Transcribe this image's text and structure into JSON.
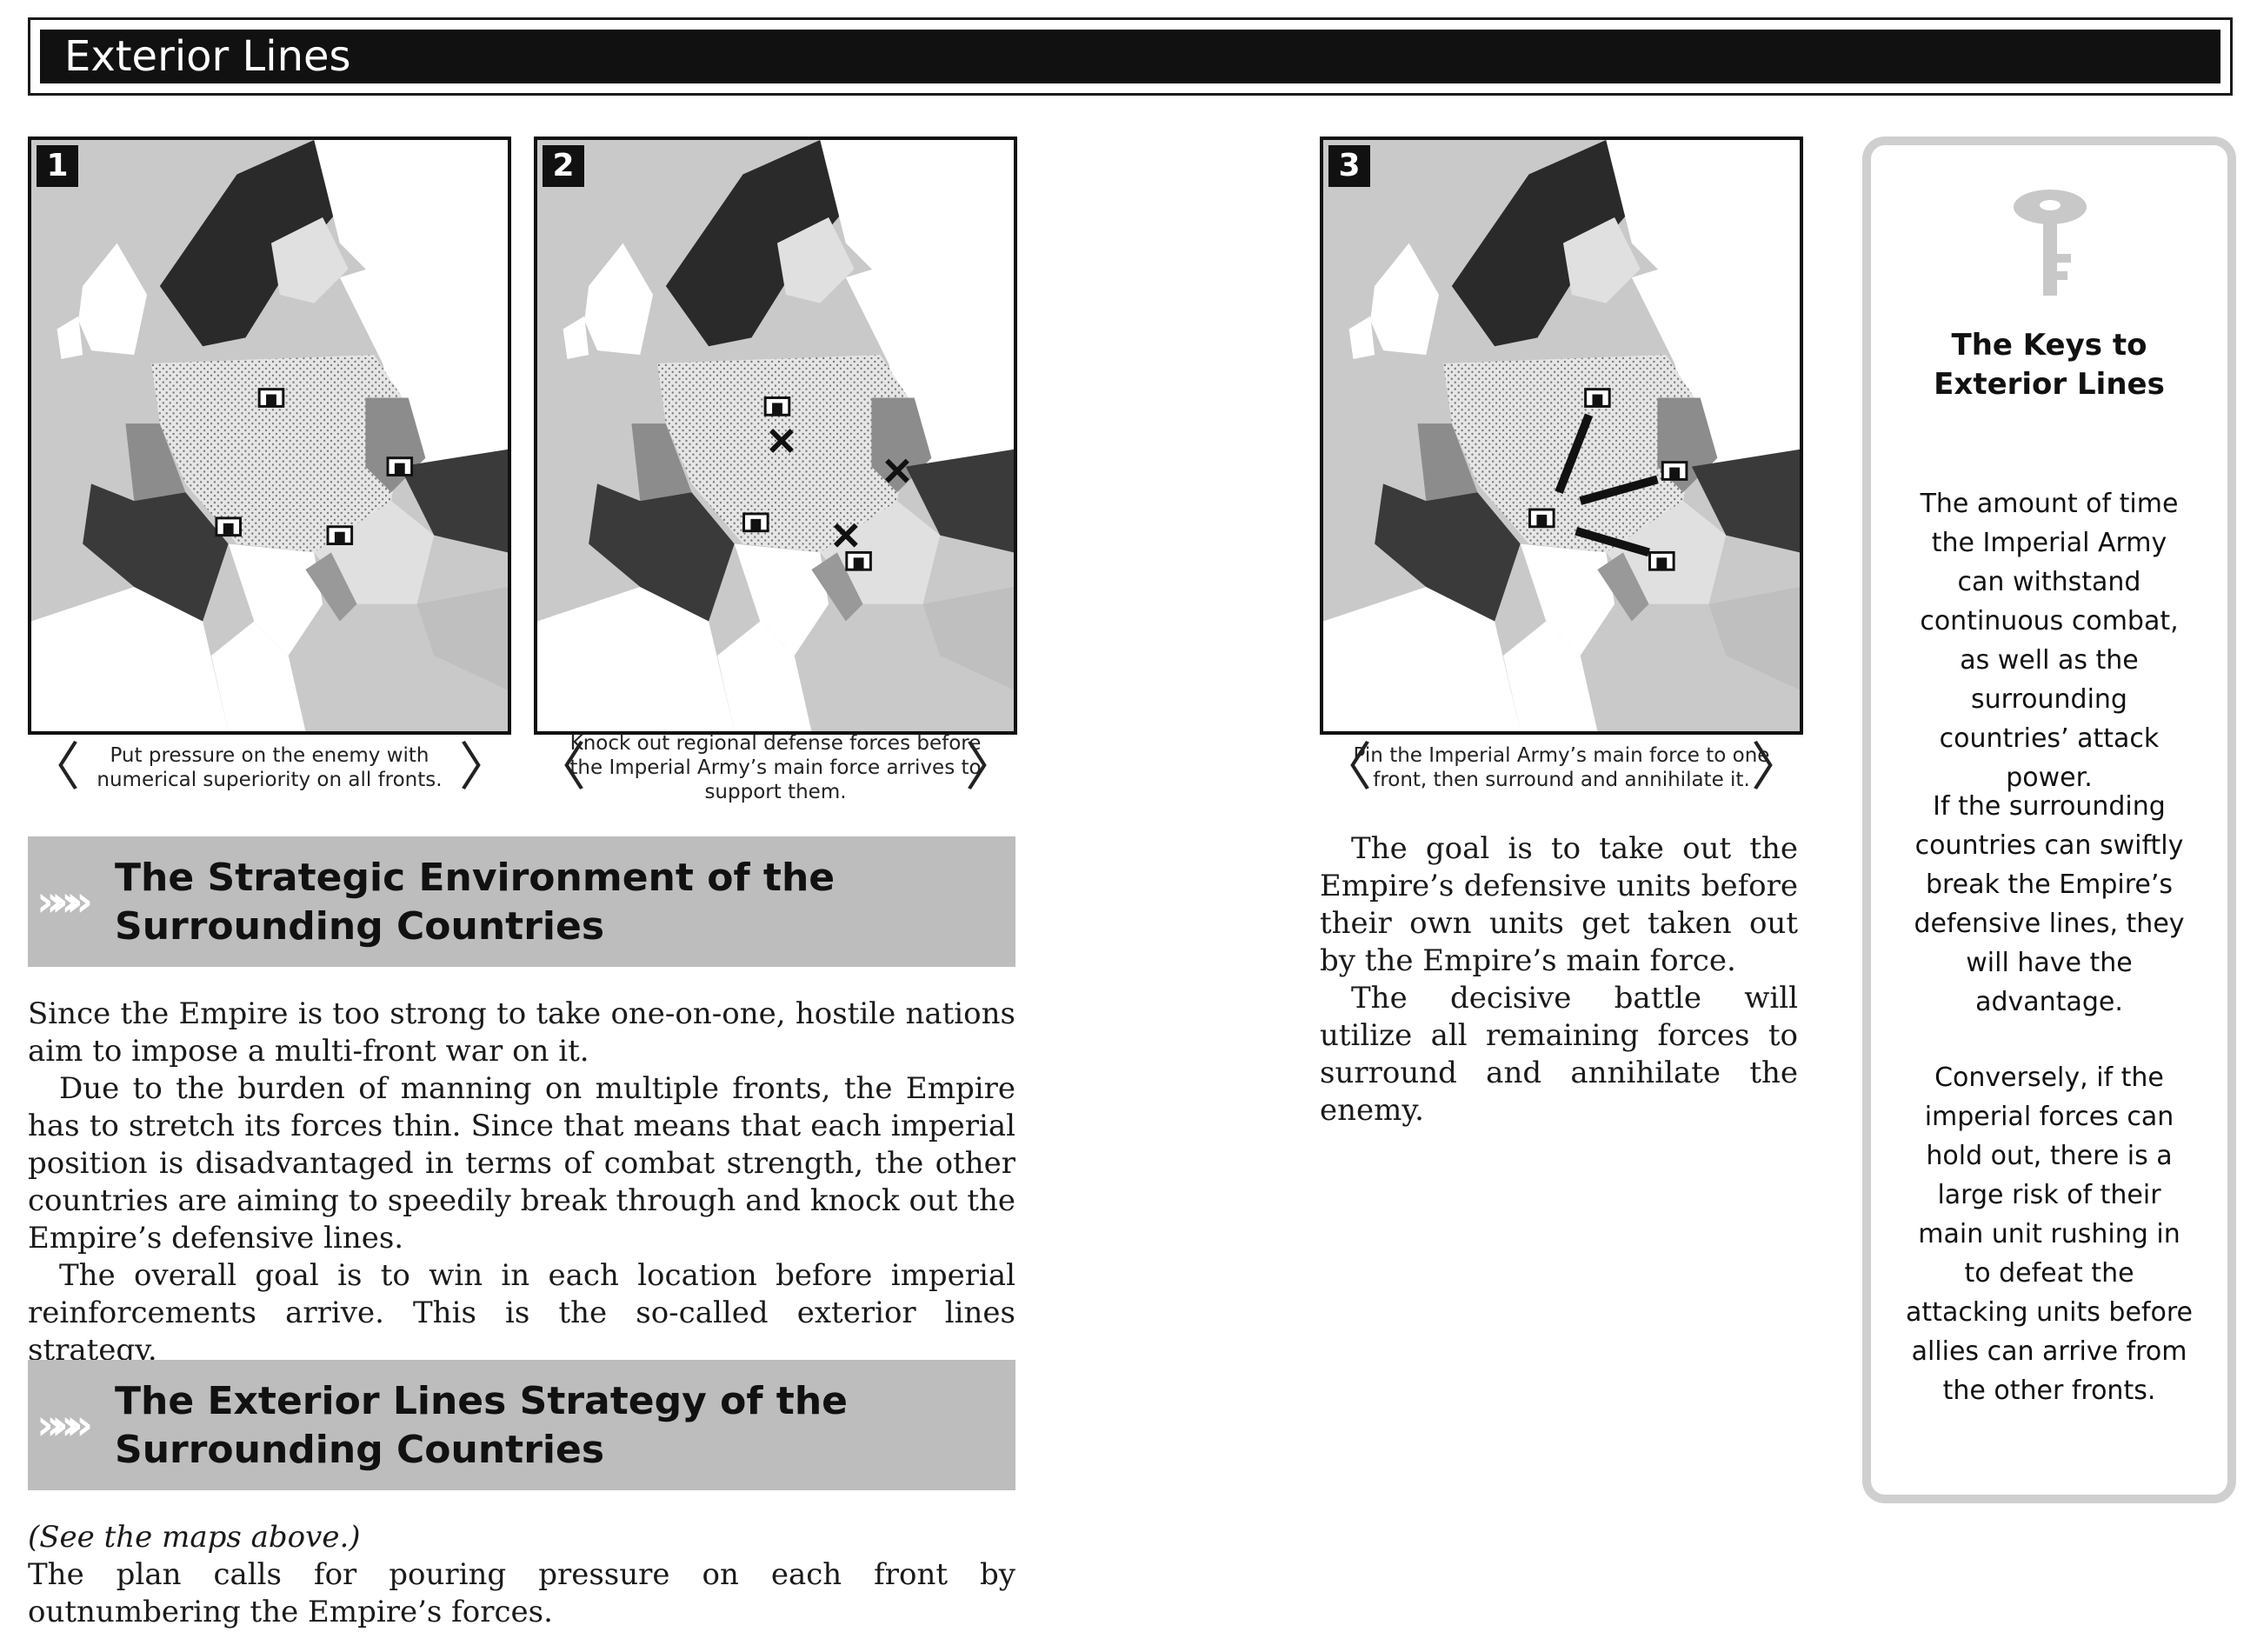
{
  "header": {
    "title": "Exterior Lines"
  },
  "maps": [
    {
      "number": "1",
      "caption": "Put pressure on the enemy with numerical superiority on all fronts."
    },
    {
      "number": "2",
      "caption": "Knock out regional defense forces before the Imperial Army’s main force arrives to support them."
    },
    {
      "number": "3",
      "caption": "Pin the Imperial Army’s main force to one front, then surround and annihilate it."
    }
  ],
  "caption_brackets": {
    "left": "〈",
    "right": "〉"
  },
  "sections": [
    {
      "chevrons": "»»»",
      "title": "The Strategic Environment of the Surrounding Countries"
    },
    {
      "chevrons": "»»»",
      "title": "The Exterior Lines Strategy of the Surrounding Countries"
    }
  ],
  "section1_paragraphs": [
    "Since the Empire is too strong to take one-on-one, hostile nations aim to impose a multi-front war on it.",
    "Due to the burden of manning on multiple fronts, the Empire has to stretch its forces thin. Since that means that each imperial position is disadvantaged in terms of combat strength, the other countries are aiming to speedily break through and knock out the Empire’s defensive lines.",
    "The overall goal is to win in each location before imperial reinforcements arrive. This is the so-called exterior lines strategy."
  ],
  "section2": {
    "note": "(See the maps above.)",
    "paragraph": "The plan calls for pouring pressure on each front by outnumbering the Empire’s forces."
  },
  "column3_paragraphs": [
    "The goal is to take out the Empire’s defensive units before their own units get taken out by the Empire’s main force.",
    "The decisive battle will utilize all remaining forces to surround and annihilate the enemy."
  ],
  "sidebar": {
    "icon": "key-icon",
    "title": "The Keys to Exterior Lines",
    "paragraphs": [
      "The amount of time the Imperial Army can withstand continuous combat, as well as the surrounding countries’ attack power.",
      "If the surrounding countries can swiftly break the Empire’s defensive lines, they will have the advantage.",
      "Conversely, if the imperial forces can hold out, there is a large risk of their main unit rushing in to defeat the attacking units before allies can arrive from the other fronts."
    ]
  },
  "colors": {
    "title_bar": "#111111",
    "section_bg": "#bdbdbd",
    "sidebar_border": "#cfcfcf",
    "sea": "#c9c9c9",
    "empire": "#dcdcdc",
    "hostile": "#3a3a3a"
  }
}
